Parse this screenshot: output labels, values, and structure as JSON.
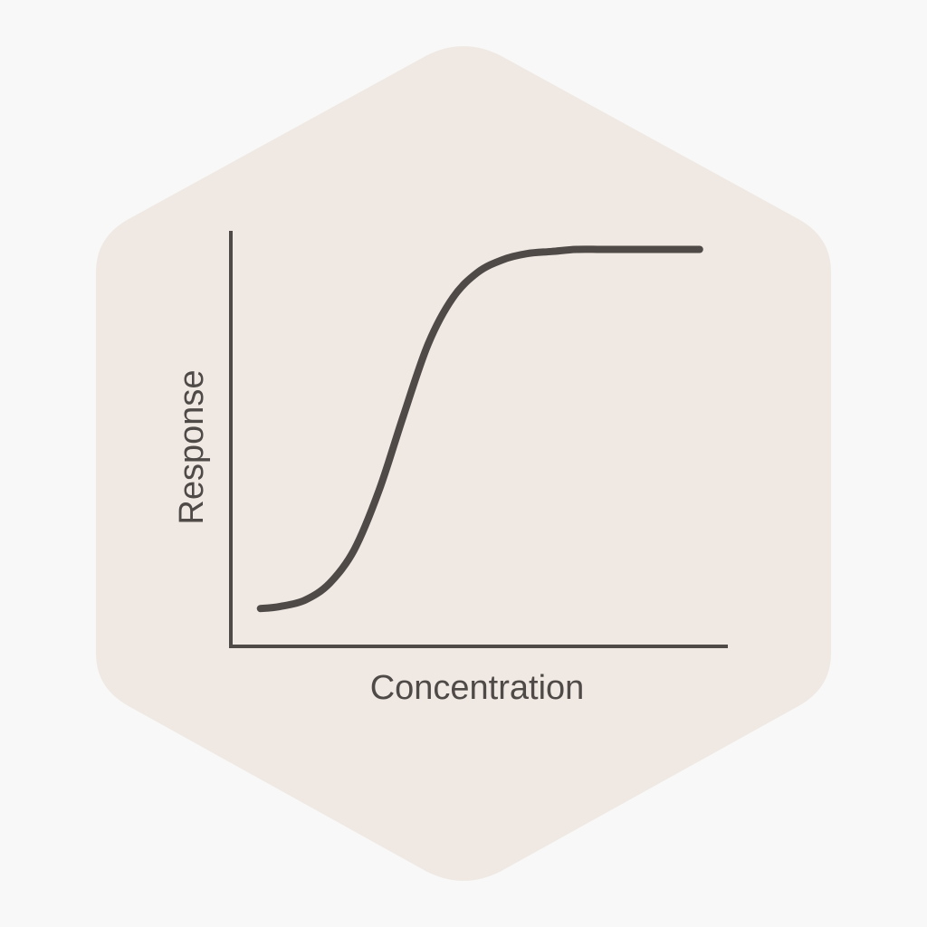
{
  "chart_data": {
    "type": "line",
    "title": "",
    "xlabel": "Concentration",
    "ylabel": "Response",
    "ticks": false,
    "grid": false,
    "legend": "none",
    "xlim": [
      0,
      1
    ],
    "ylim": [
      0,
      1
    ],
    "series": [
      {
        "x": [
          0.06,
          0.1,
          0.15,
          0.2,
          0.25,
          0.3,
          0.35,
          0.4,
          0.45,
          0.5,
          0.55,
          0.6,
          0.65,
          0.7,
          0.75,
          0.8,
          0.85,
          0.9,
          0.95
        ],
        "y": [
          0.09,
          0.095,
          0.11,
          0.15,
          0.23,
          0.37,
          0.55,
          0.72,
          0.83,
          0.89,
          0.92,
          0.935,
          0.94,
          0.945,
          0.945,
          0.945,
          0.945,
          0.945,
          0.945
        ]
      }
    ]
  },
  "style": {
    "background": "#f8f8f8",
    "hexagon_fill": "#f0e9e3",
    "ink": "#4f4a47"
  }
}
